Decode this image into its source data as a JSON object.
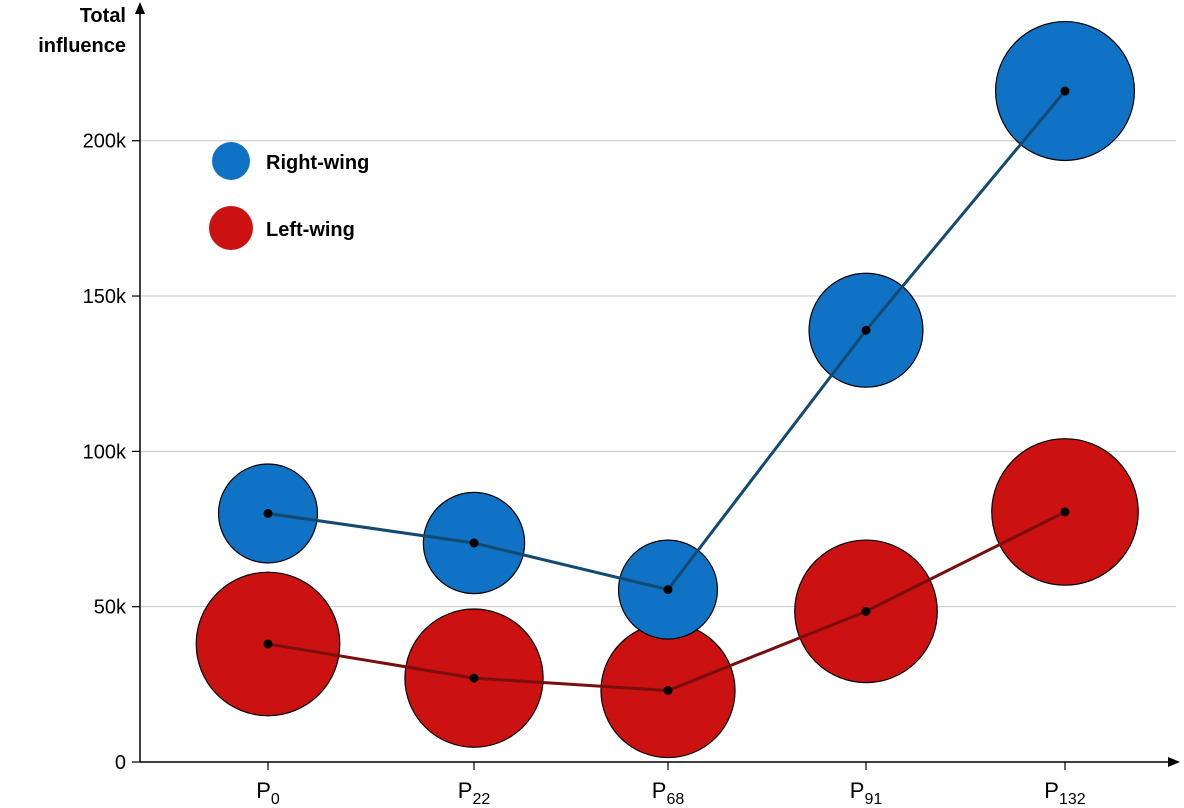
{
  "chart_data": {
    "type": "scatter",
    "title": "",
    "ylabel_line1": "Total",
    "ylabel_line2": "influence",
    "xlabel": "",
    "categories": [
      {
        "base": "P",
        "sub": "0"
      },
      {
        "base": "P",
        "sub": "22"
      },
      {
        "base": "P",
        "sub": "68"
      },
      {
        "base": "P",
        "sub": "91"
      },
      {
        "base": "P",
        "sub": "132"
      }
    ],
    "y_ticks": [
      {
        "value": 0,
        "label": "0"
      },
      {
        "value": 50000,
        "label": "50k"
      },
      {
        "value": 100000,
        "label": "100k"
      },
      {
        "value": 150000,
        "label": "150k"
      },
      {
        "value": 200000,
        "label": "200k"
      }
    ],
    "ylim": [
      0,
      235000
    ],
    "grid": true,
    "legend_position": "top-left",
    "series": [
      {
        "name": "Right-wing",
        "color": "#0f72c4",
        "line_color": "#124a72",
        "values": [
          80000,
          70500,
          55500,
          139000,
          216000
        ],
        "bubble_size": [
          10400,
          10900,
          10400,
          13800,
          20500
        ]
      },
      {
        "name": "Left-wing",
        "color": "#cc1111",
        "line_color": "#7a0e0e",
        "values": [
          38000,
          27000,
          23000,
          48500,
          80500
        ],
        "bubble_size": [
          21900,
          20300,
          19100,
          21600,
          22800
        ]
      }
    ]
  }
}
